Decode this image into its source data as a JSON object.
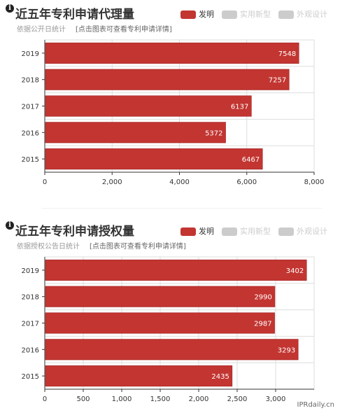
{
  "colors": {
    "bar": "#c23531",
    "bar_border": "#a02020",
    "legend_active": "#c23531",
    "legend_inactive": "#cccccc",
    "grid": "#dddddd",
    "axis": "#333333"
  },
  "watermark": "IPRdaily.cn",
  "chart_data": [
    {
      "type": "bar",
      "orientation": "horizontal",
      "title": "近五年专利申请代理量",
      "subtitle": "依据公开日统计",
      "link_text": "[点击图表可查看专利申请详情]",
      "legend": [
        {
          "name": "发明",
          "active": true
        },
        {
          "name": "实用新型",
          "active": false
        },
        {
          "name": "外观设计",
          "active": false
        }
      ],
      "categories": [
        "2019",
        "2018",
        "2017",
        "2016",
        "2015"
      ],
      "values": [
        7548,
        7257,
        6137,
        5372,
        6467
      ],
      "xlim": [
        0,
        8000
      ],
      "x_ticks": [
        0,
        2000,
        4000,
        6000,
        8000
      ],
      "x_tick_labels": [
        "0",
        "2,000",
        "4,000",
        "6,000",
        "8,000"
      ],
      "grid": true
    },
    {
      "type": "bar",
      "orientation": "horizontal",
      "title": "近五年专利申请授权量",
      "subtitle": "依据授权公告日统计",
      "link_text": "[点击图表可查看专利申请详情]",
      "legend": [
        {
          "name": "发明",
          "active": true
        },
        {
          "name": "实用新型",
          "active": false
        },
        {
          "name": "外观设计",
          "active": false
        }
      ],
      "categories": [
        "2019",
        "2018",
        "2017",
        "2016",
        "2015"
      ],
      "values": [
        3402,
        2990,
        2987,
        3293,
        2435
      ],
      "xlim": [
        0,
        3500
      ],
      "x_ticks": [
        0,
        500,
        1000,
        1500,
        2000,
        2500,
        3000
      ],
      "x_tick_labels": [
        "0",
        "500",
        "1,000",
        "1,500",
        "2,000",
        "2,500",
        "3,000"
      ],
      "grid": true
    }
  ]
}
